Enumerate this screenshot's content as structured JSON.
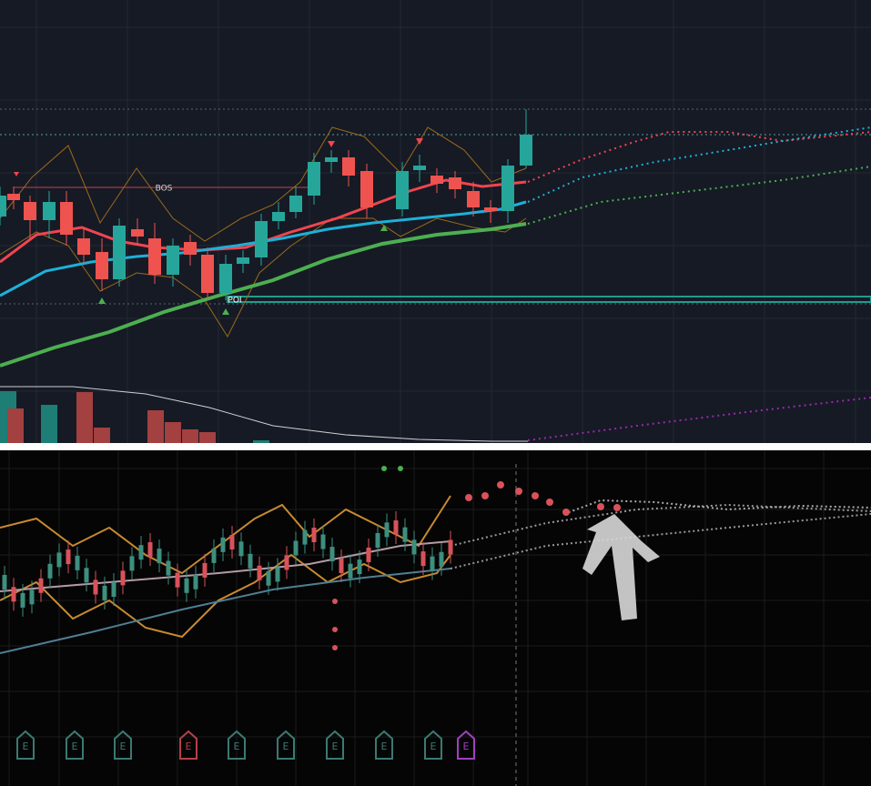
{
  "annotations": {
    "bos": "BOS",
    "poi": "POI"
  },
  "earnings_markers": [
    "E",
    "E",
    "E",
    "E",
    "E",
    "E",
    "E",
    "E",
    "E",
    "E"
  ]
}
